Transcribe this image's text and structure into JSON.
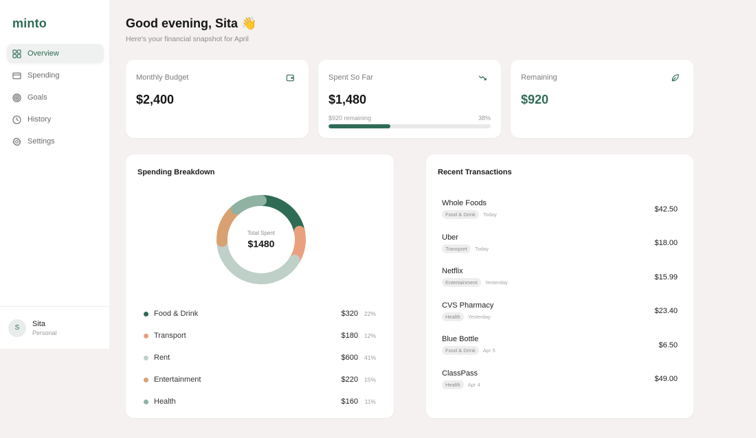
{
  "sidebar": {
    "logo": "minto",
    "items": [
      {
        "label": "Overview",
        "icon": "grid-icon",
        "active": true
      },
      {
        "label": "Spending",
        "icon": "card-icon",
        "active": false
      },
      {
        "label": "Goals",
        "icon": "target-icon",
        "active": false
      },
      {
        "label": "History",
        "icon": "clock-icon",
        "active": false
      },
      {
        "label": "Settings",
        "icon": "gear-icon",
        "active": false
      }
    ],
    "user": {
      "initial": "S",
      "name": "Sita",
      "role": "Personal"
    }
  },
  "header": {
    "greeting": "Good evening, Sita",
    "emoji": "👋",
    "subtitle": "Here's your financial snapshot for April"
  },
  "stats": {
    "budget": {
      "label": "Monthly Budget",
      "value": "$2,400",
      "icon": "wallet-icon"
    },
    "spent": {
      "label": "Spent So Far",
      "value": "$1,480",
      "icon": "trending-down-icon",
      "remaining_text": "$920 remaining",
      "percent_text": "38%",
      "percent": 38
    },
    "remaining": {
      "label": "Remaining",
      "value": "$920",
      "icon": "leaf-icon"
    }
  },
  "breakdown": {
    "title": "Spending Breakdown",
    "center_label": "Total Spent",
    "center_value": "$1480"
  },
  "chart_data": {
    "type": "pie",
    "title": "Spending Breakdown",
    "donut": true,
    "center_text": "Total Spent $1480",
    "categories": [
      "Food & Drink",
      "Transport",
      "Rent",
      "Entertainment",
      "Health"
    ],
    "values": [
      320,
      180,
      600,
      220,
      160
    ],
    "amounts": [
      "$320",
      "$180",
      "$600",
      "$220",
      "$160"
    ],
    "percents": [
      "22%",
      "12%",
      "41%",
      "15%",
      "11%"
    ],
    "colors": [
      "#2f6b55",
      "#e8a07e",
      "#bfd0c8",
      "#d9a070",
      "#8fb2a3"
    ],
    "legend_position": "bottom"
  },
  "transactions": {
    "title": "Recent Transactions",
    "items": [
      {
        "name": "Whole Foods",
        "category": "Food & Drink",
        "date": "Today",
        "amount": "$42.50"
      },
      {
        "name": "Uber",
        "category": "Transport",
        "date": "Today",
        "amount": "$18.00"
      },
      {
        "name": "Netflix",
        "category": "Entertainment",
        "date": "Yesterday",
        "amount": "$15.99"
      },
      {
        "name": "CVS Pharmacy",
        "category": "Health",
        "date": "Yesterday",
        "amount": "$23.40"
      },
      {
        "name": "Blue Bottle",
        "category": "Food & Drink",
        "date": "Apr 5",
        "amount": "$6.50"
      },
      {
        "name": "ClassPass",
        "category": "Health",
        "date": "Apr 4",
        "amount": "$49.00"
      }
    ]
  },
  "colors": {
    "accent": "#2f6b55",
    "background": "#f4f1f0",
    "card": "#ffffff"
  }
}
